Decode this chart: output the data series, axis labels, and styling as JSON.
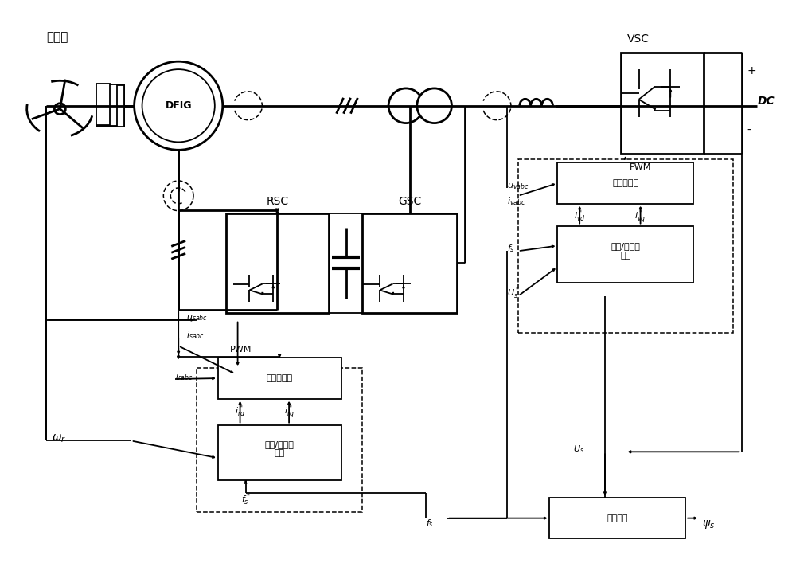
{
  "figsize": [
    10.0,
    7.07
  ],
  "dpi": 100,
  "bg_color": "#ffffff",
  "labels": {
    "wind_turbine": "风力机",
    "dfig": "DFIG",
    "rsc": "RSC",
    "gsc": "GSC",
    "vsc": "VSC",
    "pwm1": "PWM",
    "pwm2": "PWM",
    "dc_plus": "+",
    "dc_minus": "-",
    "dc": "DC",
    "current_ctrl1": "电流控制器",
    "freq_ctrl": "频率/有功控\n制器",
    "current_ctrl2": "电流控制器",
    "voltage_ctrl": "电压/无功控\n制器",
    "coord_ctrl": "协调控制",
    "u_sabc": "$u_{sabc}$",
    "i_sabc": "$i_{sabc}$",
    "i_rabc": "$i_{rabc}$",
    "omega_r": "$\\omega_r$",
    "f_s_star": "$f^*_s$",
    "i_rd_star": "$i^*_{rd}$",
    "i_rq_star": "$i^*_{rq}$",
    "u_vabc": "$u_{vabc}$",
    "i_vabc": "$i_{vabc}$",
    "f_s1": "$f_s$",
    "f_s2": "$f_s$",
    "U_s_star": "$U^*_s$",
    "i_vd_star": "$i^*_{vd}$",
    "i_vq_star": "$i^*_{vq}$",
    "U_s": "$U_s$",
    "psi_s": "$\\psi_s$"
  }
}
